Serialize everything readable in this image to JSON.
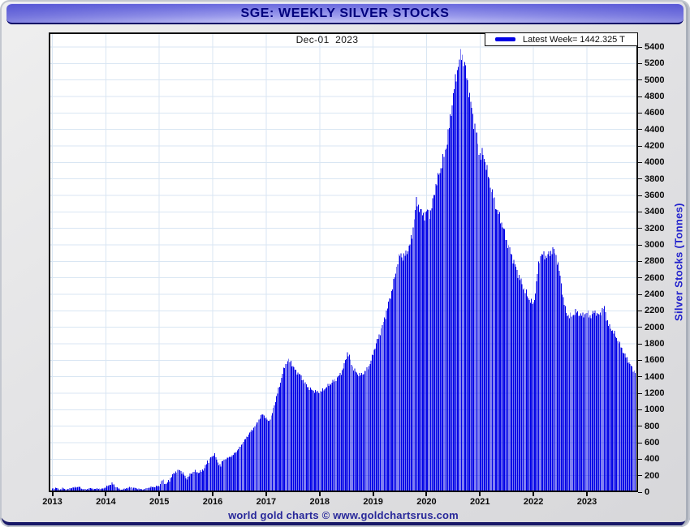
{
  "window": {
    "title": "SGE: WEEKLY SILVER STOCKS"
  },
  "chart": {
    "date_label": "Dec-01  2023",
    "legend": {
      "label": "Latest Week= 1442.325 T",
      "swatch": "blue-line"
    },
    "y_axis": {
      "title": "Silver Stocks (Tonnes)",
      "min": 0,
      "max": 5400,
      "step": 200
    },
    "x_axis": {
      "years": [
        "2013",
        "2014",
        "2015",
        "2016",
        "2017",
        "2018",
        "2019",
        "2020",
        "2021",
        "2022",
        "2023"
      ]
    },
    "footer": "world gold charts © www.goldchartsrus.com",
    "colors": {
      "bar": "#0101e6",
      "gridline": "#d9e6f3",
      "frame": "#0a0a0a",
      "title_text": "#00007d",
      "axis_title": "#2121cc",
      "footer_text": "#28289a",
      "titlebar_gradient_top": "#6a6ade",
      "titlebar_gradient_bottom": "#c2c2f5",
      "window_bg": "#e3e3e5"
    }
  },
  "chart_data": {
    "type": "bar",
    "title": "SGE: WEEKLY SILVER STOCKS",
    "ylabel": "Silver Stocks (Tonnes)",
    "xlabel": "",
    "ylim": [
      0,
      5400
    ],
    "xlim_decimal_years": [
      2012.95,
      2023.95
    ],
    "bar_interval": "weekly",
    "latest_week_date": "Dec-01 2023",
    "latest_week_value": 1442.325,
    "peak_value_approx": 5310,
    "peak_date_approx": 2020.66,
    "grid": "on",
    "legend_position": "top-right",
    "points_decimal_year_vs_tonnes": [
      [
        2013.0,
        42
      ],
      [
        2013.07,
        55
      ],
      [
        2013.13,
        28
      ],
      [
        2013.2,
        48
      ],
      [
        2013.28,
        32
      ],
      [
        2013.36,
        52
      ],
      [
        2013.44,
        60
      ],
      [
        2013.5,
        65
      ],
      [
        2013.56,
        40
      ],
      [
        2013.63,
        32
      ],
      [
        2013.7,
        50
      ],
      [
        2013.78,
        38
      ],
      [
        2013.85,
        45
      ],
      [
        2013.92,
        40
      ],
      [
        2014.0,
        58
      ],
      [
        2014.07,
        92
      ],
      [
        2014.12,
        105
      ],
      [
        2014.18,
        70
      ],
      [
        2014.24,
        40
      ],
      [
        2014.3,
        28
      ],
      [
        2014.38,
        48
      ],
      [
        2014.46,
        58
      ],
      [
        2014.54,
        50
      ],
      [
        2014.62,
        38
      ],
      [
        2014.7,
        32
      ],
      [
        2014.78,
        52
      ],
      [
        2014.86,
        60
      ],
      [
        2014.94,
        68
      ],
      [
        2015.0,
        78
      ],
      [
        2015.06,
        150
      ],
      [
        2015.12,
        95
      ],
      [
        2015.18,
        135
      ],
      [
        2015.25,
        210
      ],
      [
        2015.32,
        255
      ],
      [
        2015.38,
        265
      ],
      [
        2015.45,
        225
      ],
      [
        2015.51,
        155
      ],
      [
        2015.58,
        215
      ],
      [
        2015.65,
        255
      ],
      [
        2015.72,
        240
      ],
      [
        2015.79,
        250
      ],
      [
        2015.85,
        300
      ],
      [
        2015.91,
        370
      ],
      [
        2015.96,
        425
      ],
      [
        2016.0,
        430
      ],
      [
        2016.04,
        470
      ],
      [
        2016.09,
        345
      ],
      [
        2016.15,
        330
      ],
      [
        2016.21,
        390
      ],
      [
        2016.28,
        415
      ],
      [
        2016.36,
        440
      ],
      [
        2016.44,
        490
      ],
      [
        2016.52,
        555
      ],
      [
        2016.6,
        635
      ],
      [
        2016.68,
        705
      ],
      [
        2016.76,
        770
      ],
      [
        2016.84,
        850
      ],
      [
        2016.9,
        920
      ],
      [
        2016.94,
        950
      ],
      [
        2017.0,
        890
      ],
      [
        2017.05,
        858
      ],
      [
        2017.1,
        925
      ],
      [
        2017.15,
        1050
      ],
      [
        2017.2,
        1175
      ],
      [
        2017.26,
        1310
      ],
      [
        2017.31,
        1450
      ],
      [
        2017.36,
        1545
      ],
      [
        2017.41,
        1600
      ],
      [
        2017.46,
        1580
      ],
      [
        2017.51,
        1515
      ],
      [
        2017.56,
        1465
      ],
      [
        2017.61,
        1440
      ],
      [
        2017.66,
        1395
      ],
      [
        2017.72,
        1325
      ],
      [
        2017.78,
        1275
      ],
      [
        2017.84,
        1245
      ],
      [
        2017.9,
        1228
      ],
      [
        2017.96,
        1212
      ],
      [
        2018.02,
        1218
      ],
      [
        2018.09,
        1252
      ],
      [
        2018.16,
        1292
      ],
      [
        2018.23,
        1330
      ],
      [
        2018.3,
        1368
      ],
      [
        2018.37,
        1415
      ],
      [
        2018.43,
        1480
      ],
      [
        2018.48,
        1590
      ],
      [
        2018.52,
        1690
      ],
      [
        2018.56,
        1640
      ],
      [
        2018.6,
        1545
      ],
      [
        2018.65,
        1478
      ],
      [
        2018.71,
        1432
      ],
      [
        2018.77,
        1420
      ],
      [
        2018.83,
        1448
      ],
      [
        2018.89,
        1492
      ],
      [
        2018.95,
        1570
      ],
      [
        2019.0,
        1680
      ],
      [
        2019.05,
        1790
      ],
      [
        2019.11,
        1890
      ],
      [
        2019.17,
        2010
      ],
      [
        2019.23,
        2140
      ],
      [
        2019.29,
        2290
      ],
      [
        2019.35,
        2440
      ],
      [
        2019.41,
        2620
      ],
      [
        2019.46,
        2800
      ],
      [
        2019.51,
        2890
      ],
      [
        2019.56,
        2845
      ],
      [
        2019.62,
        2895
      ],
      [
        2019.68,
        2985
      ],
      [
        2019.73,
        3110
      ],
      [
        2019.77,
        3330
      ],
      [
        2019.81,
        3530
      ],
      [
        2019.86,
        3455
      ],
      [
        2019.91,
        3380
      ],
      [
        2019.96,
        3358
      ],
      [
        2020.02,
        3415
      ],
      [
        2020.07,
        3372
      ],
      [
        2020.12,
        3540
      ],
      [
        2020.17,
        3715
      ],
      [
        2020.23,
        3845
      ],
      [
        2020.29,
        3985
      ],
      [
        2020.34,
        4110
      ],
      [
        2020.39,
        4280
      ],
      [
        2020.44,
        4510
      ],
      [
        2020.49,
        4770
      ],
      [
        2020.54,
        4990
      ],
      [
        2020.59,
        5170
      ],
      [
        2020.63,
        5280
      ],
      [
        2020.66,
        5310
      ],
      [
        2020.7,
        5230
      ],
      [
        2020.74,
        5085
      ],
      [
        2020.78,
        4925
      ],
      [
        2020.83,
        4705
      ],
      [
        2020.88,
        4510
      ],
      [
        2020.93,
        4360
      ],
      [
        2020.97,
        4180
      ],
      [
        2021.01,
        4065
      ],
      [
        2021.05,
        4115
      ],
      [
        2021.09,
        4035
      ],
      [
        2021.14,
        3880
      ],
      [
        2021.19,
        3735
      ],
      [
        2021.24,
        3600
      ],
      [
        2021.29,
        3480
      ],
      [
        2021.34,
        3385
      ],
      [
        2021.39,
        3302
      ],
      [
        2021.45,
        3170
      ],
      [
        2021.51,
        3025
      ],
      [
        2021.56,
        2935
      ],
      [
        2021.61,
        2840
      ],
      [
        2021.67,
        2725
      ],
      [
        2021.73,
        2615
      ],
      [
        2021.79,
        2520
      ],
      [
        2021.85,
        2430
      ],
      [
        2021.91,
        2352
      ],
      [
        2021.96,
        2302
      ],
      [
        2022.0,
        2288
      ],
      [
        2022.05,
        2470
      ],
      [
        2022.09,
        2745
      ],
      [
        2022.13,
        2868
      ],
      [
        2022.18,
        2882
      ],
      [
        2022.24,
        2858
      ],
      [
        2022.3,
        2888
      ],
      [
        2022.36,
        2948
      ],
      [
        2022.41,
        2902
      ],
      [
        2022.46,
        2762
      ],
      [
        2022.51,
        2572
      ],
      [
        2022.56,
        2335
      ],
      [
        2022.61,
        2182
      ],
      [
        2022.67,
        2128
      ],
      [
        2022.74,
        2152
      ],
      [
        2022.81,
        2192
      ],
      [
        2022.88,
        2142
      ],
      [
        2022.95,
        2158
      ],
      [
        2023.02,
        2172
      ],
      [
        2023.08,
        2122
      ],
      [
        2023.14,
        2208
      ],
      [
        2023.2,
        2142
      ],
      [
        2023.27,
        2188
      ],
      [
        2023.33,
        2242
      ],
      [
        2023.37,
        2098
      ],
      [
        2023.41,
        2012
      ],
      [
        2023.46,
        1978
      ],
      [
        2023.51,
        1930
      ],
      [
        2023.56,
        1868
      ],
      [
        2023.61,
        1798
      ],
      [
        2023.66,
        1732
      ],
      [
        2023.71,
        1662
      ],
      [
        2023.76,
        1608
      ],
      [
        2023.81,
        1548
      ],
      [
        2023.86,
        1490
      ],
      [
        2023.92,
        1442.325
      ]
    ]
  }
}
